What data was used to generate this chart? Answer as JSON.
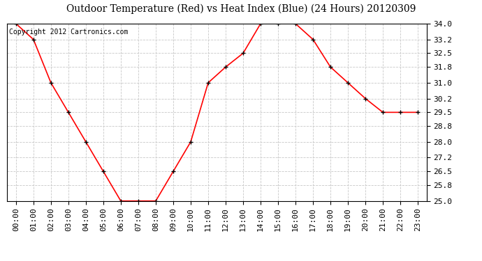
{
  "title": "Outdoor Temperature (Red) vs Heat Index (Blue) (24 Hours) 20120309",
  "copyright_text": "Copyright 2012 Cartronics.com",
  "x_labels": [
    "00:00",
    "01:00",
    "02:00",
    "03:00",
    "04:00",
    "05:00",
    "06:00",
    "07:00",
    "08:00",
    "09:00",
    "10:00",
    "11:00",
    "12:00",
    "13:00",
    "14:00",
    "15:00",
    "16:00",
    "17:00",
    "18:00",
    "19:00",
    "20:00",
    "21:00",
    "22:00",
    "23:00"
  ],
  "temp_values": [
    34.0,
    33.2,
    31.0,
    29.5,
    28.0,
    26.5,
    25.0,
    25.0,
    25.0,
    26.5,
    28.0,
    31.0,
    31.8,
    32.5,
    34.0,
    34.0,
    34.0,
    33.2,
    31.8,
    31.0,
    30.2,
    29.5,
    29.5,
    29.5
  ],
  "ylim_min": 25.0,
  "ylim_max": 34.0,
  "yticks": [
    25.0,
    25.8,
    26.5,
    27.2,
    28.0,
    28.8,
    29.5,
    30.2,
    31.0,
    31.8,
    32.5,
    33.2,
    34.0
  ],
  "line_color": "#ff0000",
  "marker_color": "#000000",
  "bg_color": "#ffffff",
  "plot_bg_color": "#ffffff",
  "grid_color": "#c8c8c8",
  "title_fontsize": 10,
  "tick_fontsize": 8,
  "copyright_fontsize": 7
}
